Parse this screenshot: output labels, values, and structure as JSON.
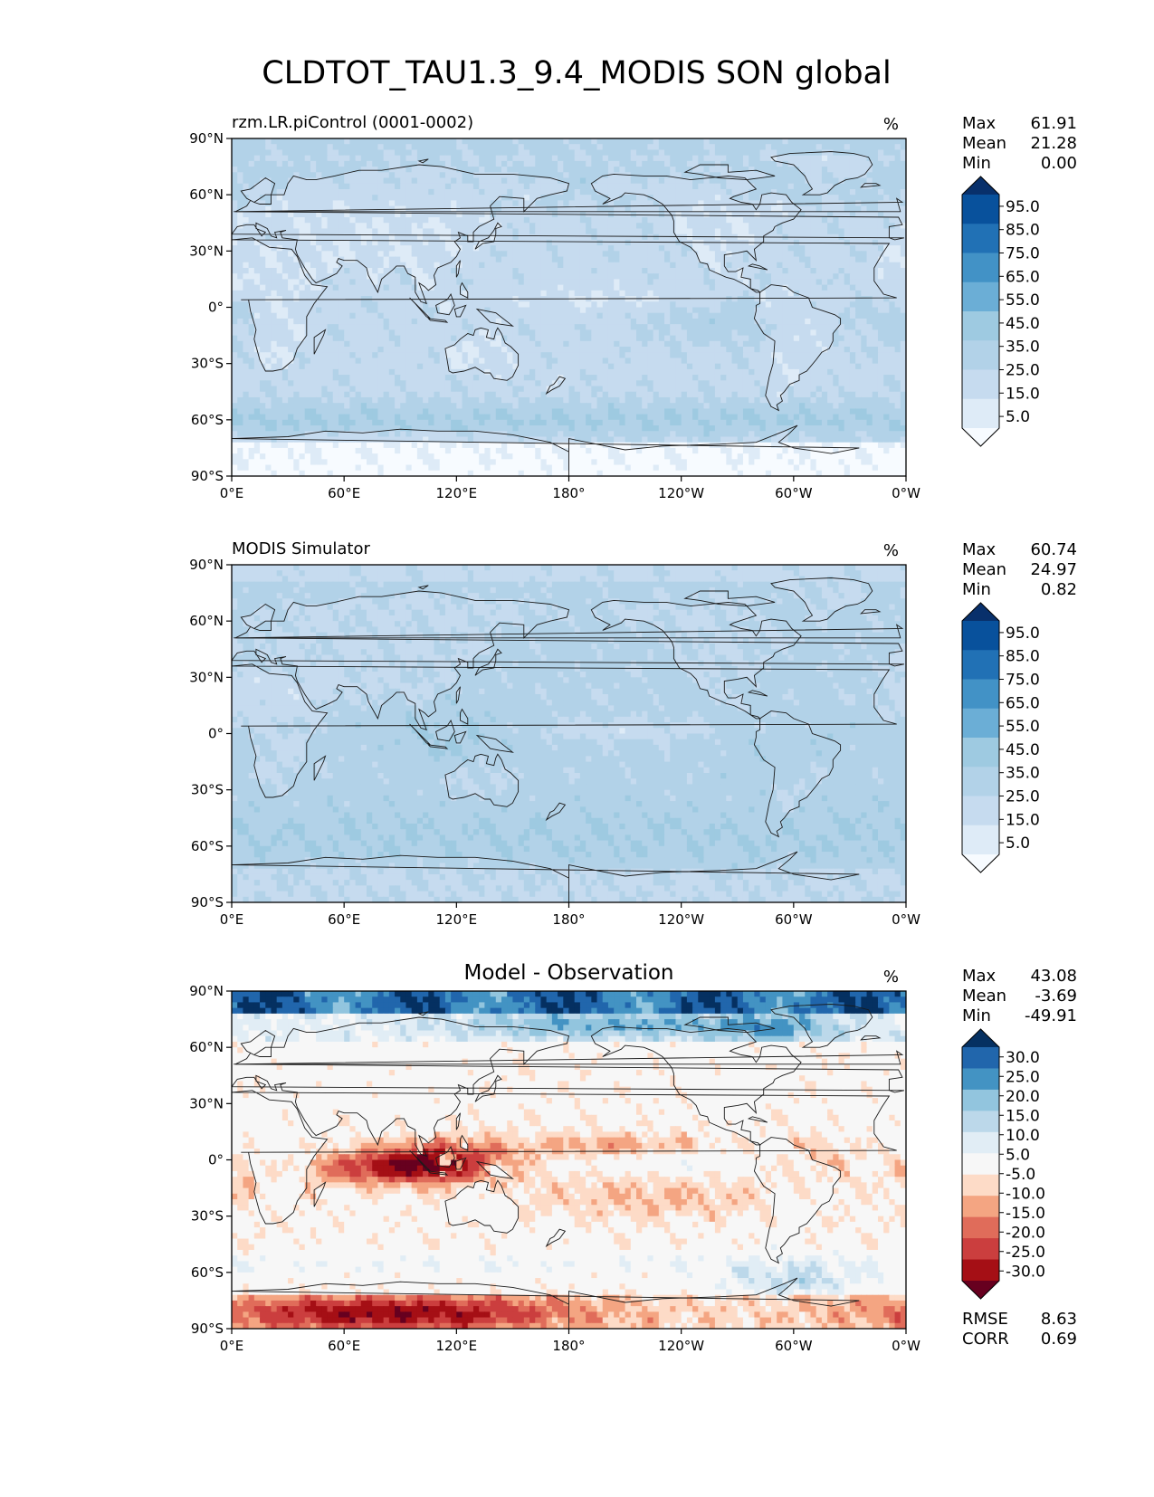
{
  "page": {
    "title": "CLDTOT_TAU1.3_9.4_MODIS SON global"
  },
  "colors": {
    "blues": [
      "#f7fbff",
      "#deebf7",
      "#c6dbef",
      "#b2d2e8",
      "#9ecae1",
      "#6baed6",
      "#4292c6",
      "#2171b5",
      "#08519c",
      "#08306b"
    ],
    "diff": [
      "#67001f",
      "#a50f15",
      "#cb3e3e",
      "#e06c5a",
      "#f4a582",
      "#fddbc7",
      "#f7f7f7",
      "#e1edf5",
      "#bcd8ea",
      "#92c5de",
      "#4393c3",
      "#2166ac",
      "#053061"
    ],
    "coast": "#1a1a1a"
  },
  "chart_data": [
    {
      "type": "heatmap",
      "title": "rzm.LR.piControl (0001-0002)",
      "units": "%",
      "stats": [
        {
          "label": "Max",
          "value": "61.91"
        },
        {
          "label": "Mean",
          "value": "21.28"
        },
        {
          "label": "Min",
          "value": "0.00"
        }
      ],
      "colorbar": {
        "levels": [
          0,
          5,
          15,
          25,
          35,
          45,
          55,
          65,
          75,
          85,
          95,
          100
        ],
        "tick_labels": [
          "95.0",
          "85.0",
          "75.0",
          "65.0",
          "55.0",
          "45.0",
          "35.0",
          "25.0",
          "15.0",
          "5.0"
        ],
        "extend": "both"
      },
      "xlim": [
        0,
        360
      ],
      "ylim": [
        -90,
        90
      ],
      "xticks": [
        "0°E",
        "60°E",
        "120°E",
        "180°",
        "120°W",
        "60°W",
        "0°W"
      ],
      "yticks": [
        "90°N",
        "60°N",
        "30°N",
        "0°",
        "30°S",
        "60°S",
        "90°S"
      ]
    },
    {
      "type": "heatmap",
      "title": "MODIS Simulator",
      "units": "%",
      "stats": [
        {
          "label": "Max",
          "value": "60.74"
        },
        {
          "label": "Mean",
          "value": "24.97"
        },
        {
          "label": "Min",
          "value": "0.82"
        }
      ],
      "colorbar": {
        "levels": [
          0,
          5,
          15,
          25,
          35,
          45,
          55,
          65,
          75,
          85,
          95,
          100
        ],
        "tick_labels": [
          "95.0",
          "85.0",
          "75.0",
          "65.0",
          "55.0",
          "45.0",
          "35.0",
          "25.0",
          "15.0",
          "5.0"
        ],
        "extend": "both"
      },
      "xlim": [
        0,
        360
      ],
      "ylim": [
        -90,
        90
      ],
      "xticks": [
        "0°E",
        "60°E",
        "120°E",
        "180°",
        "120°W",
        "60°W",
        "0°W"
      ],
      "yticks": [
        "90°N",
        "60°N",
        "30°N",
        "0°",
        "30°S",
        "60°S",
        "90°S"
      ]
    },
    {
      "type": "heatmap",
      "title": "Model - Observation",
      "units": "%",
      "stats": [
        {
          "label": "Max",
          "value": "43.08"
        },
        {
          "label": "Mean",
          "value": "-3.69"
        },
        {
          "label": "Min",
          "value": "-49.91"
        }
      ],
      "metrics": [
        {
          "label": "RMSE",
          "value": "8.63"
        },
        {
          "label": "CORR",
          "value": "0.69"
        }
      ],
      "colorbar": {
        "levels": [
          -35,
          -30,
          -25,
          -20,
          -15,
          -10,
          -5,
          5,
          10,
          15,
          20,
          25,
          30,
          35
        ],
        "tick_labels": [
          "30.0",
          "25.0",
          "20.0",
          "15.0",
          "10.0",
          "5.0",
          "-5.0",
          "-10.0",
          "-15.0",
          "-20.0",
          "-25.0",
          "-30.0"
        ],
        "extend": "both"
      },
      "xlim": [
        0,
        360
      ],
      "ylim": [
        -90,
        90
      ],
      "xticks": [
        "0°E",
        "60°E",
        "120°E",
        "180°",
        "120°W",
        "60°W",
        "0°W"
      ],
      "yticks": [
        "90°N",
        "60°N",
        "30°N",
        "0°",
        "30°S",
        "60°S",
        "90°S"
      ]
    }
  ]
}
